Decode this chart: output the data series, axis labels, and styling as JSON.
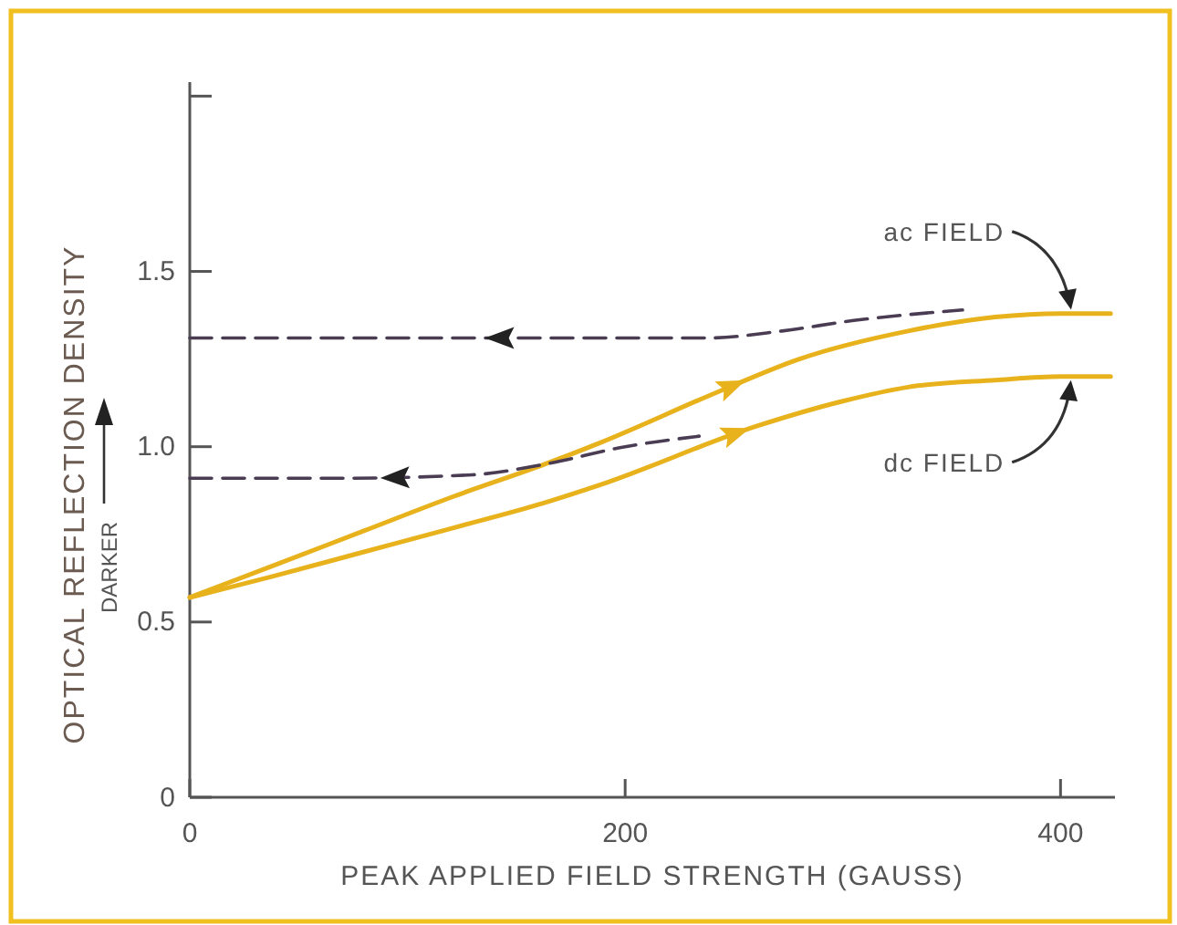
{
  "chart_data": {
    "type": "line",
    "xlabel": "PEAK APPLIED FIELD STRENGTH (GAUSS)",
    "ylabel": "OPTICAL REFLECTION DENSITY",
    "annotations": [
      "DARKER"
    ],
    "xlim": [
      0,
      425
    ],
    "ylim": [
      0,
      2.04
    ],
    "xticks": [
      0,
      200,
      400
    ],
    "yticks": [
      0,
      0.5,
      {
        "value": 1,
        "label": "1.0"
      },
      {
        "value": 1.5,
        "label": "1.5"
      },
      {
        "value": 2,
        "label": null
      }
    ],
    "grid": false,
    "marker": "none",
    "series": [
      {
        "name": "ac FIELD",
        "color": "#e8b21c",
        "line_style": "solid",
        "x": [
          0,
          38,
          80,
          122,
          163,
          188,
          244,
          280,
          330,
          370,
          400,
          423
        ],
        "values": [
          0.57,
          0.66,
          0.76,
          0.86,
          0.95,
          1.01,
          1.16,
          1.25,
          1.33,
          1.37,
          1.38,
          1.38
        ]
      },
      {
        "name": "dc FIELD",
        "color": "#e8b21c",
        "line_style": "solid",
        "x": [
          0,
          38,
          80,
          122,
          163,
          188,
          261,
          300,
          330,
          370,
          400,
          423
        ],
        "values": [
          0.57,
          0.63,
          0.7,
          0.77,
          0.84,
          0.89,
          1.06,
          1.13,
          1.17,
          1.19,
          1.2,
          1.2
        ]
      },
      {
        "color": "#4a3c52",
        "line_style": "dashed",
        "x": [
          0,
          109,
          238,
          272,
          305,
          355
        ],
        "values": [
          1.31,
          1.31,
          1.31,
          1.33,
          1.36,
          1.39
        ]
      },
      {
        "color": "#4a3c52",
        "line_style": "dashed",
        "x": [
          0,
          70,
          130,
          163,
          200,
          234
        ],
        "values": [
          0.91,
          0.91,
          0.92,
          0.95,
          1.0,
          1.03
        ]
      }
    ]
  }
}
